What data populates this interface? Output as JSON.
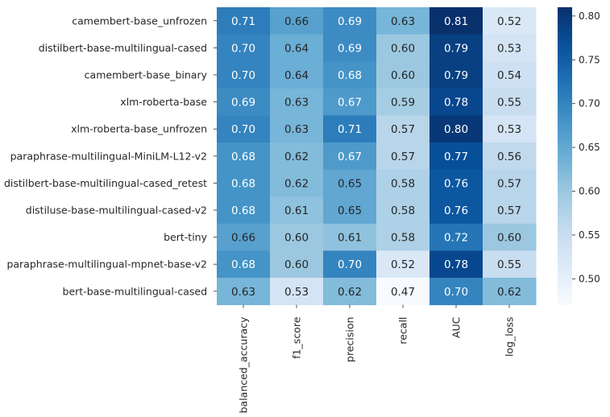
{
  "chart_data": {
    "type": "heatmap",
    "title": "",
    "xlabel": "",
    "ylabel": "",
    "colormap": "Blues",
    "color_range": [
      0.47,
      0.81
    ],
    "columns": [
      "balanced_accuracy",
      "f1_score",
      "precision",
      "recall",
      "AUC",
      "log_loss"
    ],
    "rows": [
      "camembert-base_unfrozen",
      "distilbert-base-multilingual-cased",
      "camembert-base_binary",
      "xlm-roberta-base",
      "xlm-roberta-base_unfrozen",
      "paraphrase-multilingual-MiniLM-L12-v2",
      "distilbert-base-multilingual-cased_retest",
      "distiluse-base-multilingual-cased-v2",
      "bert-tiny",
      "paraphrase-multilingual-mpnet-base-v2",
      "bert-base-multilingual-cased"
    ],
    "values": [
      [
        0.71,
        0.66,
        0.69,
        0.63,
        0.81,
        0.52
      ],
      [
        0.7,
        0.64,
        0.69,
        0.6,
        0.79,
        0.53
      ],
      [
        0.7,
        0.64,
        0.68,
        0.6,
        0.79,
        0.54
      ],
      [
        0.69,
        0.63,
        0.67,
        0.59,
        0.78,
        0.55
      ],
      [
        0.7,
        0.63,
        0.71,
        0.57,
        0.8,
        0.53
      ],
      [
        0.68,
        0.62,
        0.67,
        0.57,
        0.77,
        0.56
      ],
      [
        0.68,
        0.62,
        0.65,
        0.58,
        0.76,
        0.57
      ],
      [
        0.68,
        0.61,
        0.65,
        0.58,
        0.76,
        0.57
      ],
      [
        0.66,
        0.6,
        0.61,
        0.58,
        0.72,
        0.6
      ],
      [
        0.68,
        0.6,
        0.7,
        0.52,
        0.78,
        0.55
      ],
      [
        0.63,
        0.53,
        0.62,
        0.47,
        0.7,
        0.62
      ]
    ],
    "value_format": "0.00",
    "colorbar": {
      "ticks": [
        0.5,
        0.55,
        0.6,
        0.65,
        0.7,
        0.75,
        0.8
      ],
      "tick_labels": [
        "0.50",
        "0.55",
        "0.60",
        "0.65",
        "0.70",
        "0.75",
        "0.80"
      ],
      "position": "right"
    }
  }
}
